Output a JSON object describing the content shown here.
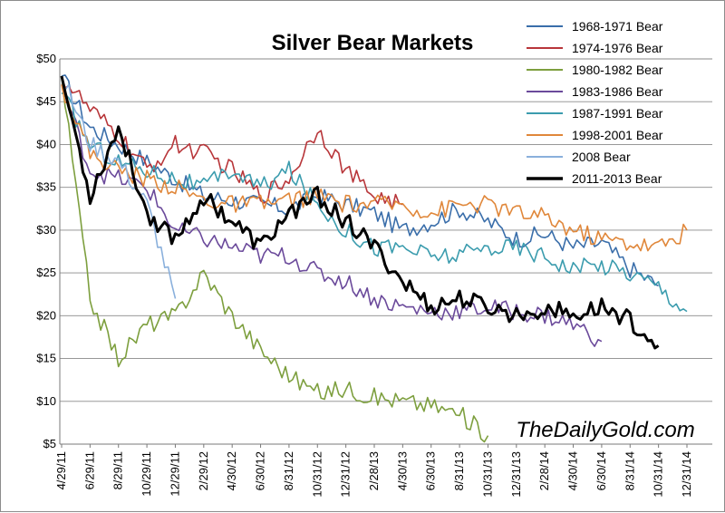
{
  "chart_data": {
    "type": "line",
    "title": "Silver Bear Markets",
    "xlabel": "",
    "ylabel": "",
    "ylim": [
      5,
      50
    ],
    "grid": true,
    "legend_position": "top-right",
    "y_ticks": [
      "$5",
      "$10",
      "$15",
      "$20",
      "$25",
      "$30",
      "$35",
      "$40",
      "$45",
      "$50"
    ],
    "y_tick_values": [
      5,
      10,
      15,
      20,
      25,
      30,
      35,
      40,
      45,
      50
    ],
    "categories": [
      "4/29/11",
      "6/29/11",
      "8/29/11",
      "10/29/11",
      "12/29/11",
      "2/29/12",
      "4/30/12",
      "6/30/12",
      "8/31/12",
      "10/31/12",
      "12/31/12",
      "2/28/13",
      "4/30/13",
      "6/30/13",
      "8/31/13",
      "10/31/13",
      "12/31/13",
      "2/28/14",
      "4/30/14",
      "6/30/14",
      "8/31/14",
      "10/31/14",
      "12/31/14"
    ],
    "watermark": "TheDailyGold.com",
    "series": [
      {
        "name": "1968-1971 Bear",
        "color": "#3a6eaa",
        "width": 1.6,
        "values": [
          48,
          42,
          40,
          38,
          36,
          34,
          33.5,
          33,
          32.5,
          34,
          33,
          32,
          30,
          31,
          32.5,
          31,
          29,
          29.5,
          28,
          28.5,
          25.5,
          23.5,
          null
        ]
      },
      {
        "name": "1974-1976 Bear",
        "color": "#b8363a",
        "width": 1.6,
        "values": [
          48,
          44,
          41,
          37,
          40,
          39,
          37,
          34,
          36,
          42,
          37,
          34,
          33,
          null,
          null,
          null,
          null,
          null,
          null,
          null,
          null,
          null,
          null
        ]
      },
      {
        "name": "1980-1982 Bear",
        "color": "#7d9f3e",
        "width": 1.6,
        "values": [
          48,
          22,
          15,
          19,
          20,
          25,
          20,
          16,
          13,
          11,
          11.5,
          10.5,
          10,
          9.5,
          8.5,
          6,
          null,
          null,
          null,
          null,
          null,
          null,
          null
        ]
      },
      {
        "name": "1983-1986 Bear",
        "color": "#6b4a9b",
        "width": 1.6,
        "values": [
          47,
          37,
          36,
          35,
          30,
          29,
          28,
          27,
          27,
          25,
          24,
          22,
          21,
          20.5,
          20.5,
          21,
          20.5,
          20,
          19,
          17,
          null,
          null,
          null
        ]
      },
      {
        "name": "1987-1991 Bear",
        "color": "#3b9cae",
        "width": 1.6,
        "values": [
          46,
          40,
          38,
          37,
          36,
          35,
          37,
          35,
          37,
          33,
          30,
          28,
          28,
          27,
          27,
          28,
          28,
          27,
          25.5,
          26,
          25,
          23.5,
          20.5
        ]
      },
      {
        "name": "1998-2001 Bear",
        "color": "#e0873a",
        "width": 1.6,
        "values": [
          47,
          39,
          37,
          36,
          35,
          33.5,
          33,
          33,
          33.5,
          34,
          33,
          33,
          33,
          32,
          33,
          33,
          32,
          31.5,
          30,
          29,
          28.5,
          28,
          30
        ]
      },
      {
        "name": "2008 Bear",
        "color": "#8ab0dc",
        "width": 1.6,
        "values": [
          48,
          40,
          38,
          33,
          22,
          null,
          null,
          null,
          null,
          null,
          null,
          null,
          null,
          null,
          null,
          null,
          null,
          null,
          null,
          null,
          null,
          null,
          null
        ]
      },
      {
        "name": "2011-2013 Bear",
        "color": "#000000",
        "width": 3,
        "values": [
          48,
          34,
          42,
          32,
          29,
          34,
          31,
          28,
          32,
          34,
          31,
          28,
          24,
          21,
          22,
          21,
          20,
          21,
          20,
          21,
          19.5,
          16.5,
          null
        ]
      }
    ]
  }
}
